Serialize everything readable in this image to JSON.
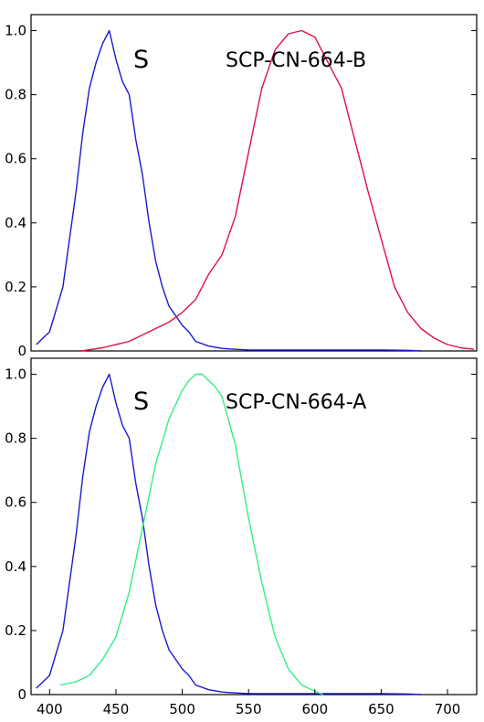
{
  "chart_data": [
    {
      "type": "line",
      "title": "",
      "xlabel": "",
      "ylabel": "",
      "xlim": [
        386,
        722
      ],
      "ylim": [
        0,
        1.05
      ],
      "x_ticks": [],
      "y_ticks": [
        0,
        0.2,
        0.4,
        0.6,
        0.8,
        1.0
      ],
      "y_tick_labels": [
        "0",
        "0.2",
        "0.4",
        "0.6",
        "0.8",
        "1.0"
      ],
      "grid": false,
      "annotations": [
        "S",
        "SCP-CN-664-B"
      ],
      "series": [
        {
          "color": "#1a1acc",
          "x": [
            390,
            400,
            410,
            420,
            425,
            430,
            435,
            440,
            445,
            450,
            455,
            460,
            465,
            470,
            475,
            480,
            485,
            490,
            495,
            500,
            505,
            510,
            520,
            530,
            540,
            550,
            600,
            650,
            670,
            680
          ],
          "y": [
            0.02,
            0.06,
            0.2,
            0.5,
            0.68,
            0.82,
            0.9,
            0.96,
            1.0,
            0.91,
            0.84,
            0.8,
            0.66,
            0.55,
            0.4,
            0.28,
            0.2,
            0.14,
            0.11,
            0.08,
            0.06,
            0.03,
            0.015,
            0.008,
            0.005,
            0.003,
            0.003,
            0.003,
            0.002,
            0.0
          ]
        },
        {
          "color": "#dd1144",
          "x": [
            424,
            440,
            460,
            470,
            480,
            490,
            500,
            510,
            520,
            530,
            540,
            550,
            560,
            570,
            580,
            590,
            600,
            610,
            620,
            630,
            640,
            650,
            660,
            670,
            680,
            690,
            700,
            710,
            720
          ],
          "y": [
            0.0,
            0.01,
            0.03,
            0.05,
            0.07,
            0.09,
            0.12,
            0.16,
            0.24,
            0.3,
            0.42,
            0.62,
            0.82,
            0.94,
            0.99,
            1.0,
            0.98,
            0.9,
            0.82,
            0.66,
            0.5,
            0.35,
            0.2,
            0.12,
            0.07,
            0.04,
            0.02,
            0.01,
            0.005
          ]
        }
      ]
    },
    {
      "type": "line",
      "title": "",
      "xlabel": "",
      "ylabel": "",
      "xlim": [
        386,
        722
      ],
      "ylim": [
        0,
        1.05
      ],
      "x_ticks": [
        400,
        450,
        500,
        550,
        600,
        650,
        700
      ],
      "x_tick_labels": [
        "400",
        "450",
        "500",
        "550",
        "600",
        "650",
        "700"
      ],
      "y_ticks": [
        0,
        0.2,
        0.4,
        0.6,
        0.8,
        1.0
      ],
      "y_tick_labels": [
        "0",
        "0.2",
        "0.4",
        "0.6",
        "0.8",
        "1.0"
      ],
      "grid": false,
      "annotations": [
        "S",
        "SCP-CN-664-A"
      ],
      "series": [
        {
          "color": "#1a1acc",
          "x": [
            390,
            400,
            410,
            420,
            425,
            430,
            435,
            440,
            445,
            450,
            455,
            460,
            465,
            470,
            475,
            480,
            485,
            490,
            495,
            500,
            505,
            510,
            520,
            530,
            540,
            550,
            600,
            650,
            670,
            680
          ],
          "y": [
            0.02,
            0.06,
            0.2,
            0.5,
            0.68,
            0.82,
            0.9,
            0.96,
            1.0,
            0.91,
            0.84,
            0.8,
            0.66,
            0.55,
            0.4,
            0.28,
            0.2,
            0.14,
            0.11,
            0.08,
            0.06,
            0.03,
            0.015,
            0.008,
            0.005,
            0.003,
            0.003,
            0.003,
            0.002,
            0.0
          ]
        },
        {
          "color": "#33ee88",
          "x": [
            408,
            420,
            430,
            440,
            450,
            460,
            470,
            480,
            490,
            500,
            505,
            510,
            515,
            520,
            525,
            530,
            540,
            550,
            560,
            570,
            580,
            590,
            600,
            606
          ],
          "y": [
            0.03,
            0.04,
            0.06,
            0.11,
            0.18,
            0.32,
            0.52,
            0.72,
            0.86,
            0.95,
            0.98,
            1.0,
            1.0,
            0.98,
            0.96,
            0.93,
            0.78,
            0.55,
            0.35,
            0.18,
            0.08,
            0.03,
            0.01,
            0.0
          ]
        }
      ]
    }
  ]
}
